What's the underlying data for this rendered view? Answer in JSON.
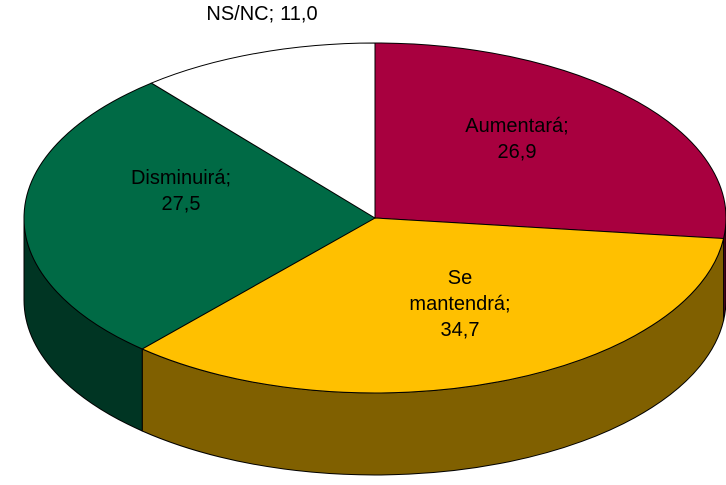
{
  "chart_data": {
    "type": "pie3d",
    "categories": [
      "Aumentará;",
      "Se mantendrá;",
      "Disminuirá;",
      "NS/NC;"
    ],
    "values": [
      26.9,
      34.7,
      27.5,
      11.0
    ],
    "value_labels": [
      "26,9",
      "34,7",
      "27,5",
      "11,0"
    ],
    "colors": [
      "#A8003F",
      "#FFC000",
      "#006A45",
      "#FFFFFF"
    ],
    "label_colors": [
      "#FFFFFF",
      "#000000",
      "#FFFFFF",
      "#000000"
    ]
  }
}
